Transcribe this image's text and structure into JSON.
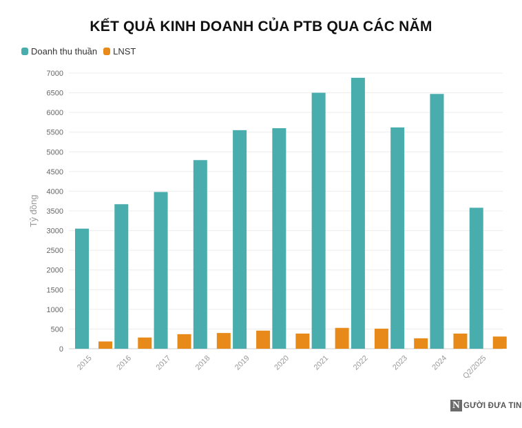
{
  "chart_data": {
    "type": "bar",
    "title": "KẾT QUẢ KINH DOANH CỦA PTB QUA CÁC NĂM",
    "ylabel": "Tỷ đồng",
    "xlabel": "",
    "ylim": [
      0,
      7000
    ],
    "yticks": [
      "0",
      "500",
      "1000",
      "1500",
      "2000",
      "2500",
      "3000",
      "3500",
      "4000",
      "4500",
      "5000",
      "5500",
      "6000",
      "6500",
      "7000"
    ],
    "categories": [
      "2015",
      "2016",
      "2017",
      "2018",
      "2019",
      "2020",
      "2021",
      "2022",
      "2023",
      "2024",
      "Q2/2025"
    ],
    "series": [
      {
        "name": "Doanh thu thuần",
        "color": "#4aadad",
        "values": [
          3050,
          3670,
          3980,
          4790,
          5550,
          5600,
          6500,
          6880,
          5620,
          6470,
          3580
        ]
      },
      {
        "name": "LNST",
        "color": "#e88a1a",
        "values": [
          185,
          285,
          370,
          400,
          460,
          385,
          530,
          510,
          265,
          385,
          310
        ]
      }
    ],
    "grid": true,
    "legend_position": "top-left"
  },
  "watermark": {
    "logo_letter": "N",
    "text": "gười đưa tin"
  }
}
